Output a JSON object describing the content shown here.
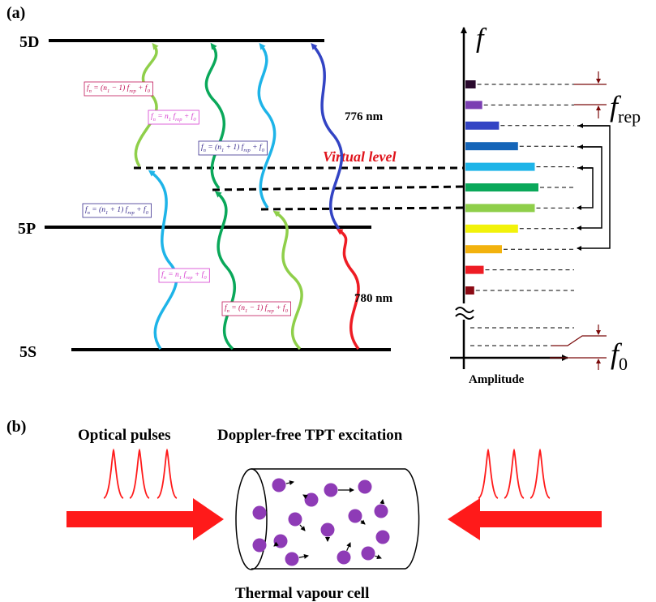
{
  "panel_a": {
    "label": "(a)",
    "levels": {
      "d": "5D",
      "p": "5P",
      "s": "5S"
    },
    "virtual_level": "Virtual level",
    "wavelength_upper": "776 nm",
    "wavelength_lower": "780 nm",
    "formula_boxes": [
      {
        "lhs": "f",
        "sub": "n",
        "rhs": " = (n",
        "n_sub": "1",
        "tail": " − 1) f",
        "rep": "rep",
        "end": " + f",
        "zero": "0",
        "color": "#c2185b"
      },
      {
        "lhs": "f",
        "sub": "n",
        "rhs": " = n",
        "n_sub": "1",
        "tail": " f",
        "rep": "rep",
        "end": " + f",
        "zero": "0",
        "color": "#d63ccf"
      },
      {
        "lhs": "f",
        "sub": "n",
        "rhs": " = (n",
        "n_sub": "1",
        "tail": " + 1) f",
        "rep": "rep",
        "end": " + f",
        "zero": "0",
        "color": "#3b2f8f"
      },
      {
        "lhs": "f",
        "sub": "n",
        "rhs": " = (n",
        "n_sub": "1",
        "tail": " + 1) f",
        "rep": "rep",
        "end": " + f",
        "zero": "0",
        "color": "#3b2f8f"
      },
      {
        "lhs": "f",
        "sub": "n",
        "rhs": " = n",
        "n_sub": "1",
        "tail": " f",
        "rep": "rep",
        "end": " + f",
        "zero": "0",
        "color": "#d63ccf"
      },
      {
        "lhs": "f",
        "sub": "n",
        "rhs": " = (n",
        "n_sub": "1",
        "tail": " − 1) f",
        "rep": "rep",
        "end": " + f",
        "zero": "0",
        "color": "#c2185b"
      }
    ],
    "spectrum": {
      "axis_f": "f",
      "axis_amplitude": "Amplitude",
      "f_rep": "f",
      "f_rep_sub": "rep",
      "f_zero": "f",
      "f_zero_sub": "0",
      "comb_teeth": [
        {
          "amplitude": 0.14,
          "color": "#2a0a2e"
        },
        {
          "amplitude": 0.23,
          "color": "#7b3fb2"
        },
        {
          "amplitude": 0.46,
          "color": "#3344c4"
        },
        {
          "amplitude": 0.72,
          "color": "#1565b8"
        },
        {
          "amplitude": 0.95,
          "color": "#1eb4e8"
        },
        {
          "amplitude": 1.0,
          "color": "#0aa85a"
        },
        {
          "amplitude": 0.95,
          "color": "#8fcf4a"
        },
        {
          "amplitude": 0.72,
          "color": "#f2f20a"
        },
        {
          "amplitude": 0.5,
          "color": "#f2b20e"
        },
        {
          "amplitude": 0.25,
          "color": "#ee1c24"
        },
        {
          "amplitude": 0.12,
          "color": "#8b0a14"
        }
      ]
    },
    "transition_colors": [
      "#1eb4e8",
      "#0aa85a",
      "#8fcf4a",
      "#ee1c24",
      "#8fcf4a",
      "#0aa85a",
      "#1eb4e8",
      "#3344c4"
    ]
  },
  "panel_b": {
    "label": "(b)",
    "optical_pulses": "Optical pulses",
    "excitation": "Doppler-free TPT excitation",
    "cell_label": "Thermal vapour cell",
    "atom_color": "#8e3bb6",
    "beam_color": "#ff1a1a"
  }
}
